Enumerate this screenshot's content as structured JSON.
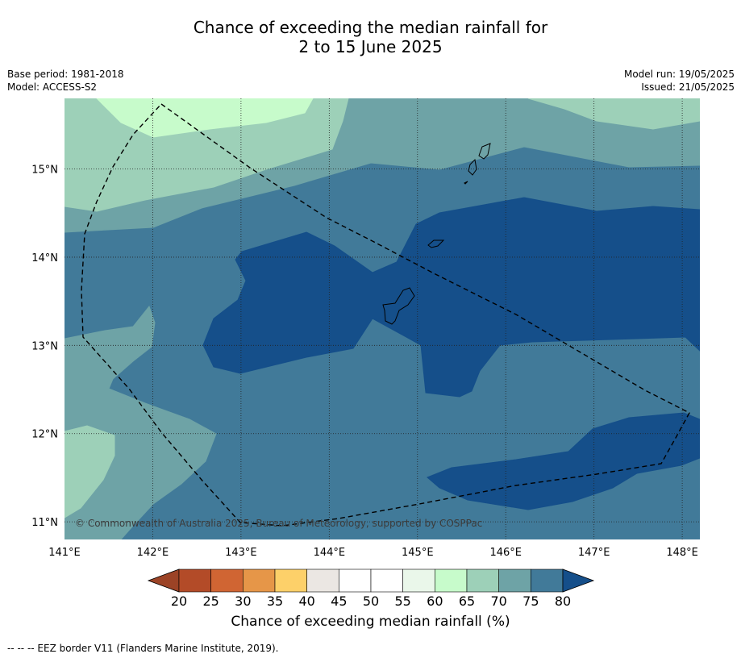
{
  "title": {
    "line1": "Chance of exceeding the median rainfall for",
    "line2": "2 to 15 June 2025"
  },
  "meta_left": {
    "base_period": "Base period: 1981-2018",
    "model": "Model: ACCESS-S2"
  },
  "meta_right": {
    "model_run": "Model run: 19/05/2025",
    "issued": "Issued: 21/05/2025"
  },
  "map": {
    "lon_range": [
      141.0,
      148.2
    ],
    "lat_range": [
      10.8,
      15.8
    ],
    "lon_ticks": [
      {
        "value": 141,
        "label": "141°E"
      },
      {
        "value": 142,
        "label": "142°E"
      },
      {
        "value": 143,
        "label": "143°E"
      },
      {
        "value": 144,
        "label": "144°E"
      },
      {
        "value": 145,
        "label": "145°E"
      },
      {
        "value": 146,
        "label": "146°E"
      },
      {
        "value": 147,
        "label": "147°E"
      },
      {
        "value": 148,
        "label": "148°E"
      }
    ],
    "lat_ticks": [
      {
        "value": 15,
        "label": "15°N"
      },
      {
        "value": 14,
        "label": "14°N"
      },
      {
        "value": 13,
        "label": "13°N"
      },
      {
        "value": 12,
        "label": "12°N"
      },
      {
        "value": 11,
        "label": "11°N"
      }
    ],
    "copyright": "© Commonwealth of Australia 2025, Bureau of Meteorology, supported by COSPPac",
    "colors": {
      "c60_65": "#c7fbcb",
      "c65_70": "#9dd0b8",
      "c70_75": "#6ea3a6",
      "c75_80": "#417a99",
      "c80_plus": "#154f8a",
      "grid": "#222222",
      "eez": "#000000"
    }
  },
  "colorbar": {
    "ticks": [
      "20",
      "25",
      "30",
      "35",
      "40",
      "45",
      "50",
      "55",
      "60",
      "65",
      "70",
      "75",
      "80"
    ],
    "colors": [
      "#b34b28",
      "#d06533",
      "#e69648",
      "#fdd069",
      "#ebe7e3",
      "#ffffff",
      "#ffffff",
      "#eaf7ea",
      "#c7fbcb",
      "#9dd0b8",
      "#6ea3a6",
      "#417a99"
    ],
    "under_color": "#9c4326",
    "over_color": "#154f8a",
    "label": "Chance of exceeding median rainfall (%)"
  },
  "footer": {
    "legend_line": "--  --  -- EEZ border V11 (Flanders Marine Institute, 2019)."
  }
}
